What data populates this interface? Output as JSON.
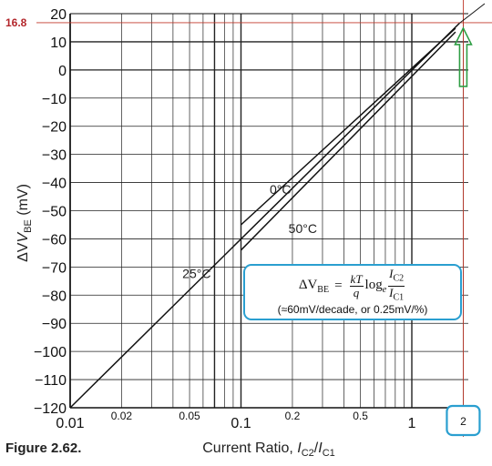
{
  "caption": "Figure 2.62.",
  "formula": {
    "lhs": "ΔV",
    "lhs_sub": "BE",
    "equals": "=",
    "frac1_num": "kT",
    "frac1_den": "q",
    "log": "log",
    "log_sub": "e",
    "frac2_num": "I",
    "frac2_num_sub": "C2",
    "frac2_den": "I",
    "frac2_den_sub": "C1",
    "note": "(≈60mV/decade, or 0.25mV/%)"
  },
  "marker": {
    "value_label": "16.8",
    "x_label": "2"
  },
  "chart_data": {
    "type": "line",
    "title": "",
    "xlabel_main": "Current Ratio, ",
    "xlabel_italic_1": "I",
    "xlabel_sub_1": "C2",
    "xlabel_slash": "/",
    "xlabel_italic_2": "I",
    "xlabel_sub_2": "C1",
    "ylabel": "ΔV",
    "ylabel_sub": "BE",
    "ylabel_unit": " (mV)",
    "xscale": "log",
    "xlim": [
      0.01,
      2.2
    ],
    "ylim": [
      -120,
      20
    ],
    "grid": true,
    "y_ticks": [
      20,
      10,
      0,
      -10,
      -20,
      -30,
      -40,
      -50,
      -60,
      -70,
      -80,
      -90,
      -100,
      -110,
      -120
    ],
    "y_tick_labels": [
      "20",
      "10",
      "0",
      "−10",
      "−20",
      "−30",
      "−40",
      "−50",
      "−60",
      "−70",
      "−80",
      "−90",
      "−100",
      "−110",
      "−120"
    ],
    "x_major_ticks": [
      {
        "value": 0.01,
        "label": "0.01"
      },
      {
        "value": 0.1,
        "label": "0.1"
      },
      {
        "value": 1,
        "label": "1"
      }
    ],
    "x_minor_ticks": [
      {
        "value": 0.02,
        "label": "0.02"
      },
      {
        "value": 0.05,
        "label": "0.05"
      },
      {
        "value": 0.2,
        "label": "0.2"
      },
      {
        "value": 0.5,
        "label": "0.5"
      }
    ],
    "series": [
      {
        "name": "25°C",
        "x": [
          0.01,
          1.9
        ],
        "y": [
          -120,
          16.6
        ]
      },
      {
        "name": "0°C",
        "x": [
          0.1,
          1.8
        ],
        "y": [
          -55,
          14.8
        ]
      },
      {
        "name": "50°C",
        "x": [
          0.1,
          1.8
        ],
        "y": [
          -64,
          13.5
        ]
      }
    ],
    "annotations": [
      {
        "text": "0°C",
        "x": 0.17,
        "y": -44
      },
      {
        "text": "50°C",
        "x": 0.23,
        "y": -58
      },
      {
        "text": "25°C",
        "x": 0.055,
        "y": -74
      }
    ],
    "reference_lines": {
      "horizontal_y": 16.8,
      "vertical_x": 2
    }
  }
}
